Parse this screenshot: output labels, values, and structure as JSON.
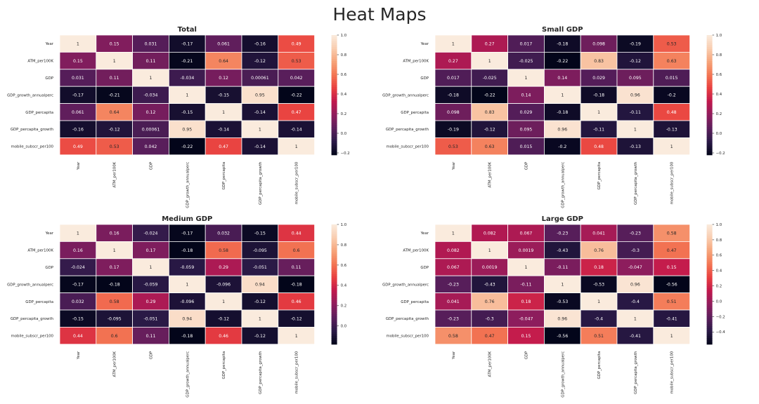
{
  "figure": {
    "title": "Heat Maps"
  },
  "chart_data": [
    {
      "type": "heatmap",
      "title": "Total",
      "rows": [
        "Year",
        "ATM_per100K",
        "GDP",
        "GDP_growth_annualperc",
        "GDP_percapita",
        "GDP_percapita_growth",
        "mobile_subscr_per100"
      ],
      "cols": [
        "Year",
        "ATM_per100K",
        "GDP",
        "GDP_growth_annualperc",
        "GDP_percapita",
        "GDP_percapita_growth",
        "mobile_subscr_per100"
      ],
      "values": [
        [
          1,
          0.15,
          0.031,
          -0.17,
          0.061,
          -0.16,
          0.49
        ],
        [
          0.15,
          1,
          0.11,
          -0.21,
          0.64,
          -0.12,
          0.53
        ],
        [
          0.031,
          0.11,
          1,
          -0.034,
          0.12,
          0.00061,
          0.042
        ],
        [
          -0.17,
          -0.21,
          -0.034,
          1,
          -0.15,
          0.95,
          -0.22
        ],
        [
          0.061,
          0.64,
          0.12,
          -0.15,
          1,
          -0.14,
          0.47
        ],
        [
          -0.16,
          -0.12,
          0.00061,
          0.95,
          -0.14,
          1,
          -0.14
        ],
        [
          0.49,
          0.53,
          0.042,
          -0.22,
          0.47,
          -0.14,
          1
        ]
      ],
      "labels": [
        [
          "1",
          "0.15",
          "0.031",
          "-0.17",
          "0.061",
          "-0.16",
          "0.49"
        ],
        [
          "0.15",
          "1",
          "0.11",
          "-0.21",
          "0.64",
          "-0.12",
          "0.53"
        ],
        [
          "0.031",
          "0.11",
          "1",
          "-0.034",
          "0.12",
          "0.00061",
          "0.042"
        ],
        [
          "-0.17",
          "-0.21",
          "-0.034",
          "1",
          "-0.15",
          "0.95",
          "-0.22"
        ],
        [
          "0.061",
          "0.64",
          "0.12",
          "-0.15",
          "1",
          "-0.14",
          "0.47"
        ],
        [
          "-0.16",
          "-0.12",
          "0.00061",
          "0.95",
          "-0.14",
          "1",
          "-0.14"
        ],
        [
          "0.49",
          "0.53",
          "0.042",
          "-0.22",
          "0.47",
          "-0.14",
          "1"
        ]
      ],
      "vmin": -0.22,
      "vmax": 1,
      "colorbar_ticks": [
        1.0,
        0.8,
        0.6,
        0.4,
        0.2,
        0.0,
        -0.2
      ],
      "colorbar_labels": [
        "1.0",
        "0.8",
        "0.6",
        "0.4",
        "0.2",
        "0.0",
        "−0.2"
      ]
    },
    {
      "type": "heatmap",
      "title": "Small GDP",
      "rows": [
        "Year",
        "ATM_per100K",
        "GDP",
        "GDP_growth_annualperc",
        "GDP_percapita",
        "GDP_percapita_growth",
        "mobile_subscr_per100"
      ],
      "cols": [
        "Year",
        "ATM_per100K",
        "GDP",
        "GDP_growth_annualperc",
        "GDP_percapita",
        "GDP_percapita_growth",
        "mobile_subscr_per100"
      ],
      "values": [
        [
          1,
          0.27,
          0.017,
          -0.18,
          0.098,
          -0.19,
          0.53
        ],
        [
          0.27,
          1,
          -0.025,
          -0.22,
          0.83,
          -0.12,
          0.63
        ],
        [
          0.017,
          -0.025,
          1,
          0.14,
          0.029,
          0.095,
          0.015
        ],
        [
          -0.18,
          -0.22,
          0.14,
          1,
          -0.18,
          0.96,
          -0.2
        ],
        [
          0.098,
          0.83,
          0.029,
          -0.18,
          1,
          -0.11,
          0.48
        ],
        [
          -0.19,
          -0.12,
          0.095,
          0.96,
          -0.11,
          1,
          -0.13
        ],
        [
          0.53,
          0.63,
          0.015,
          -0.2,
          0.48,
          -0.13,
          1
        ]
      ],
      "labels": [
        [
          "1",
          "0.27",
          "0.017",
          "-0.18",
          "0.098",
          "-0.19",
          "0.53"
        ],
        [
          "0.27",
          "1",
          "-0.025",
          "-0.22",
          "0.83",
          "-0.12",
          "0.63"
        ],
        [
          "0.017",
          "-0.025",
          "1",
          "0.14",
          "0.029",
          "0.095",
          "0.015"
        ],
        [
          "-0.18",
          "-0.22",
          "0.14",
          "1",
          "-0.18",
          "0.96",
          "-0.2"
        ],
        [
          "0.098",
          "0.83",
          "0.029",
          "-0.18",
          "1",
          "-0.11",
          "0.48"
        ],
        [
          "-0.19",
          "-0.12",
          "0.095",
          "0.96",
          "-0.11",
          "1",
          "-0.13"
        ],
        [
          "0.53",
          "0.63",
          "0.015",
          "-0.2",
          "0.48",
          "-0.13",
          "1"
        ]
      ],
      "vmin": -0.22,
      "vmax": 1,
      "colorbar_ticks": [
        1.0,
        0.8,
        0.6,
        0.4,
        0.2,
        0.0,
        -0.2
      ],
      "colorbar_labels": [
        "1.0",
        "0.8",
        "0.6",
        "0.4",
        "0.2",
        "0.0",
        "−0.2"
      ]
    },
    {
      "type": "heatmap",
      "title": "Medium GDP",
      "rows": [
        "Year",
        "ATM_per100K",
        "GDP",
        "GDP_growth_annualperc",
        "GDP_percapita",
        "GDP_percapita_growth",
        "mobile_subscr_per100"
      ],
      "cols": [
        "Year",
        "ATM_per100K",
        "GDP",
        "GDP_growth_annualperc",
        "GDP_percapita",
        "GDP_percapita_growth",
        "mobile_subscr_per100"
      ],
      "values": [
        [
          1,
          0.16,
          -0.024,
          -0.17,
          0.032,
          -0.15,
          0.44
        ],
        [
          0.16,
          1,
          0.17,
          -0.18,
          0.58,
          -0.095,
          0.6
        ],
        [
          -0.024,
          0.17,
          1,
          -0.059,
          0.29,
          -0.051,
          0.11
        ],
        [
          -0.17,
          -0.18,
          -0.059,
          1,
          -0.096,
          0.94,
          -0.18
        ],
        [
          0.032,
          0.58,
          0.29,
          -0.096,
          1,
          -0.12,
          0.46
        ],
        [
          -0.15,
          -0.095,
          -0.051,
          0.94,
          -0.12,
          1,
          -0.12
        ],
        [
          0.44,
          0.6,
          0.11,
          -0.18,
          0.46,
          -0.12,
          1
        ]
      ],
      "labels": [
        [
          "1",
          "0.16",
          "-0.024",
          "-0.17",
          "0.032",
          "-0.15",
          "0.44"
        ],
        [
          "0.16",
          "1",
          "0.17",
          "-0.18",
          "0.58",
          "-0.095",
          "0.6"
        ],
        [
          "-0.024",
          "0.17",
          "1",
          "-0.059",
          "0.29",
          "-0.051",
          "0.11"
        ],
        [
          "-0.17",
          "-0.18",
          "-0.059",
          "1",
          "-0.096",
          "0.94",
          "-0.18"
        ],
        [
          "0.032",
          "0.58",
          "0.29",
          "-0.096",
          "1",
          "-0.12",
          "0.46"
        ],
        [
          "-0.15",
          "-0.095",
          "-0.051",
          "0.94",
          "-0.12",
          "1",
          "-0.12"
        ],
        [
          "0.44",
          "0.6",
          "0.11",
          "-0.18",
          "0.46",
          "-0.12",
          "1"
        ]
      ],
      "vmin": -0.18,
      "vmax": 1,
      "colorbar_ticks": [
        1.0,
        0.8,
        0.6,
        0.4,
        0.2,
        0.0
      ],
      "colorbar_labels": [
        "1.0",
        "0.8",
        "0.6",
        "0.4",
        "0.2",
        "0.0"
      ]
    },
    {
      "type": "heatmap",
      "title": "Large GDP",
      "rows": [
        "Year",
        "ATM_per100K",
        "GDP",
        "GDP_growth_annualperc",
        "GDP_percapita",
        "GDP_percapita_growth",
        "mobile_subscr_per100"
      ],
      "cols": [
        "Year",
        "ATM_per100K",
        "GDP",
        "GDP_growth_annualperc",
        "GDP_percapita",
        "GDP_percapita_growth",
        "mobile_subscr_per100"
      ],
      "values": [
        [
          1,
          0.082,
          0.067,
          -0.23,
          0.041,
          -0.23,
          0.58
        ],
        [
          0.082,
          1,
          0.0019,
          -0.43,
          0.76,
          -0.3,
          0.47
        ],
        [
          0.067,
          0.0019,
          1,
          -0.11,
          0.18,
          -0.047,
          0.15
        ],
        [
          -0.23,
          -0.43,
          -0.11,
          1,
          -0.53,
          0.96,
          -0.56
        ],
        [
          0.041,
          0.76,
          0.18,
          -0.53,
          1,
          -0.4,
          0.51
        ],
        [
          -0.23,
          -0.3,
          -0.047,
          0.96,
          -0.4,
          1,
          -0.41
        ],
        [
          0.58,
          0.47,
          0.15,
          -0.56,
          0.51,
          -0.41,
          1
        ]
      ],
      "labels": [
        [
          "1",
          "0.082",
          "0.067",
          "-0.23",
          "0.041",
          "-0.23",
          "0.58"
        ],
        [
          "0.082",
          "1",
          "0.0019",
          "-0.43",
          "0.76",
          "-0.3",
          "0.47"
        ],
        [
          "0.067",
          "0.0019",
          "1",
          "-0.11",
          "0.18",
          "-0.047",
          "0.15"
        ],
        [
          "-0.23",
          "-0.43",
          "-0.11",
          "1",
          "-0.53",
          "0.96",
          "-0.56"
        ],
        [
          "0.041",
          "0.76",
          "0.18",
          "-0.53",
          "1",
          "-0.4",
          "0.51"
        ],
        [
          "-0.23",
          "-0.3",
          "-0.047",
          "0.96",
          "-0.4",
          "1",
          "-0.41"
        ],
        [
          "0.58",
          "0.47",
          "0.15",
          "-0.56",
          "0.51",
          "-0.41",
          "1"
        ]
      ],
      "vmin": -0.56,
      "vmax": 1,
      "colorbar_ticks": [
        1.0,
        0.8,
        0.6,
        0.4,
        0.2,
        0.0,
        -0.2,
        -0.4
      ],
      "colorbar_labels": [
        "1.0",
        "0.8",
        "0.6",
        "0.4",
        "0.2",
        "0.0",
        "−0.2",
        "−0.4"
      ]
    }
  ],
  "colormap": {
    "name": "rocket",
    "stops": [
      "#03051a",
      "#2b1a47",
      "#5c1e5c",
      "#8f1d5d",
      "#c0184d",
      "#e83f3f",
      "#f37553",
      "#f6a47a",
      "#f9cdb0",
      "#faebdd"
    ]
  }
}
